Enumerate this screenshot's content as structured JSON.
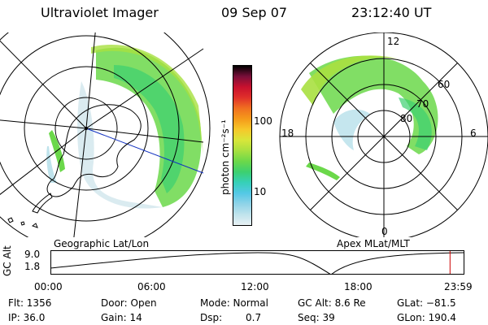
{
  "header": {
    "title": "Ultraviolet Imager",
    "date": "09 Sep 07",
    "time": "23:12:40 UT"
  },
  "colorbar": {
    "unit_label": "photon cm⁻²s⁻¹",
    "ticks": [
      "100",
      "10"
    ],
    "colors": [
      "#000000",
      "#7a0f3a",
      "#c8102e",
      "#e0302a",
      "#f07020",
      "#f59a1a",
      "#f6c82a",
      "#d8e63a",
      "#a8e040",
      "#6cd84a",
      "#3cd070",
      "#36d0b8",
      "#54c8e6",
      "#8fd3e8",
      "#bfe3ec",
      "#e8f1f4"
    ]
  },
  "geo_map": {
    "caption": "Geographic Lat/Lon"
  },
  "apex_map": {
    "caption": "Apex MLat/MLT",
    "labels": {
      "top": "12",
      "left": "18",
      "right": "6",
      "bottom": "0",
      "r60": "60",
      "r70": "70",
      "r80": "80"
    }
  },
  "timeline": {
    "ylabel": "GC Alt",
    "ytick_top": "9.0",
    "ytick_bottom": "1.8",
    "xticks": [
      "00:00",
      "06:00",
      "12:00",
      "18:00",
      "23:59"
    ],
    "marker_color": "#cc0000",
    "marker_fraction": 0.9671
  },
  "info": {
    "flt": "Flt: 1356",
    "ip": "IP: 36.0",
    "door": "Door: Open",
    "gain": "Gain: 14",
    "mode": "Mode: Normal",
    "dsp_label": "Dsp:",
    "dsp_value": "0.7",
    "gc_alt": "GC Alt: 8.6 Re",
    "seq": "Seq: 39",
    "glat": "GLat: −81.5",
    "glon": "GLon: 190.4"
  }
}
